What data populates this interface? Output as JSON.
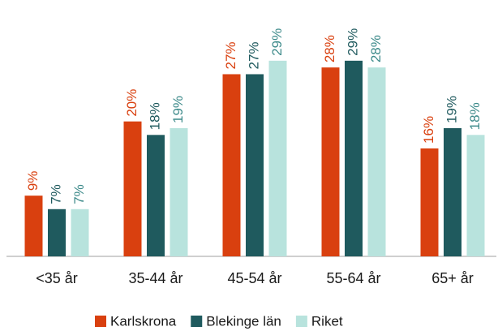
{
  "chart_data": {
    "type": "bar",
    "categories": [
      "<35 år",
      "35-44 år",
      "45-54 år",
      "55-64 år",
      "65+ år"
    ],
    "series": [
      {
        "name": "Karlskrona",
        "color": "#d9400f",
        "values": [
          9,
          20,
          27,
          28,
          16
        ],
        "value_labels": [
          "9%",
          "20%",
          "27%",
          "28%",
          "16%"
        ]
      },
      {
        "name": "Blekinge län",
        "color": "#1f5a5e",
        "values": [
          7,
          18,
          27,
          29,
          19
        ],
        "value_labels": [
          "7%",
          "18%",
          "27%",
          "29%",
          "19%"
        ]
      },
      {
        "name": "Riket",
        "color": "#b8e3dd",
        "values": [
          7,
          19,
          29,
          28,
          18
        ],
        "value_labels": [
          "7%",
          "19%",
          "29%",
          "28%",
          "18%"
        ]
      }
    ],
    "ylim": [
      0,
      38
    ],
    "legend": "bottom"
  }
}
